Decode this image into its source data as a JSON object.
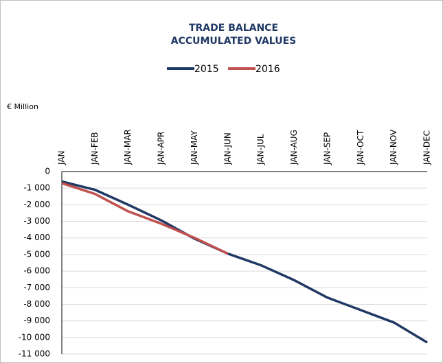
{
  "chart_data": {
    "type": "line",
    "title": [
      "TRADE BALANCE",
      "ACCUMULATED VALUES"
    ],
    "y_axis_label": "€ Million",
    "categories": [
      "JAN",
      "JAN-FEB",
      "JAN-MAR",
      "JAN-APR",
      "JAN-MAY",
      "JAN-JUN",
      "JAN-JUL",
      "JAN-AUG",
      "JAN-SEP",
      "JAN-OCT",
      "JAN-NOV",
      "JAN-DEC"
    ],
    "series": [
      {
        "name": "2015",
        "color": "#1f3864",
        "values": [
          -600,
          -1100,
          -2000,
          -2950,
          -4050,
          -4950,
          -5650,
          -6550,
          -7600,
          -8350,
          -9100,
          -10300
        ]
      },
      {
        "name": "2016",
        "color": "#c0504d",
        "values": [
          -700,
          -1350,
          -2400,
          -3150,
          -4000,
          -4950,
          null,
          null,
          null,
          null,
          null,
          null
        ]
      }
    ],
    "ylim": [
      0,
      -11000
    ],
    "yticks": [
      0,
      {
        "value": -1000,
        "label": "-1 000"
      },
      {
        "value": -2000,
        "label": "-2 000"
      },
      {
        "value": -3000,
        "label": "-3 000"
      },
      {
        "value": -4000,
        "label": "-4 000"
      },
      {
        "value": -5000,
        "label": "-5 000"
      },
      {
        "value": -6000,
        "label": "-6 000"
      },
      {
        "value": -7000,
        "label": "-7 000"
      },
      {
        "value": -8000,
        "label": "-8 000"
      },
      {
        "value": -9000,
        "label": "-9 000"
      },
      {
        "value": -10000,
        "label": "-10 000"
      },
      {
        "value": -11000,
        "label": "-11 000"
      }
    ],
    "grid": true,
    "legend": "top"
  }
}
